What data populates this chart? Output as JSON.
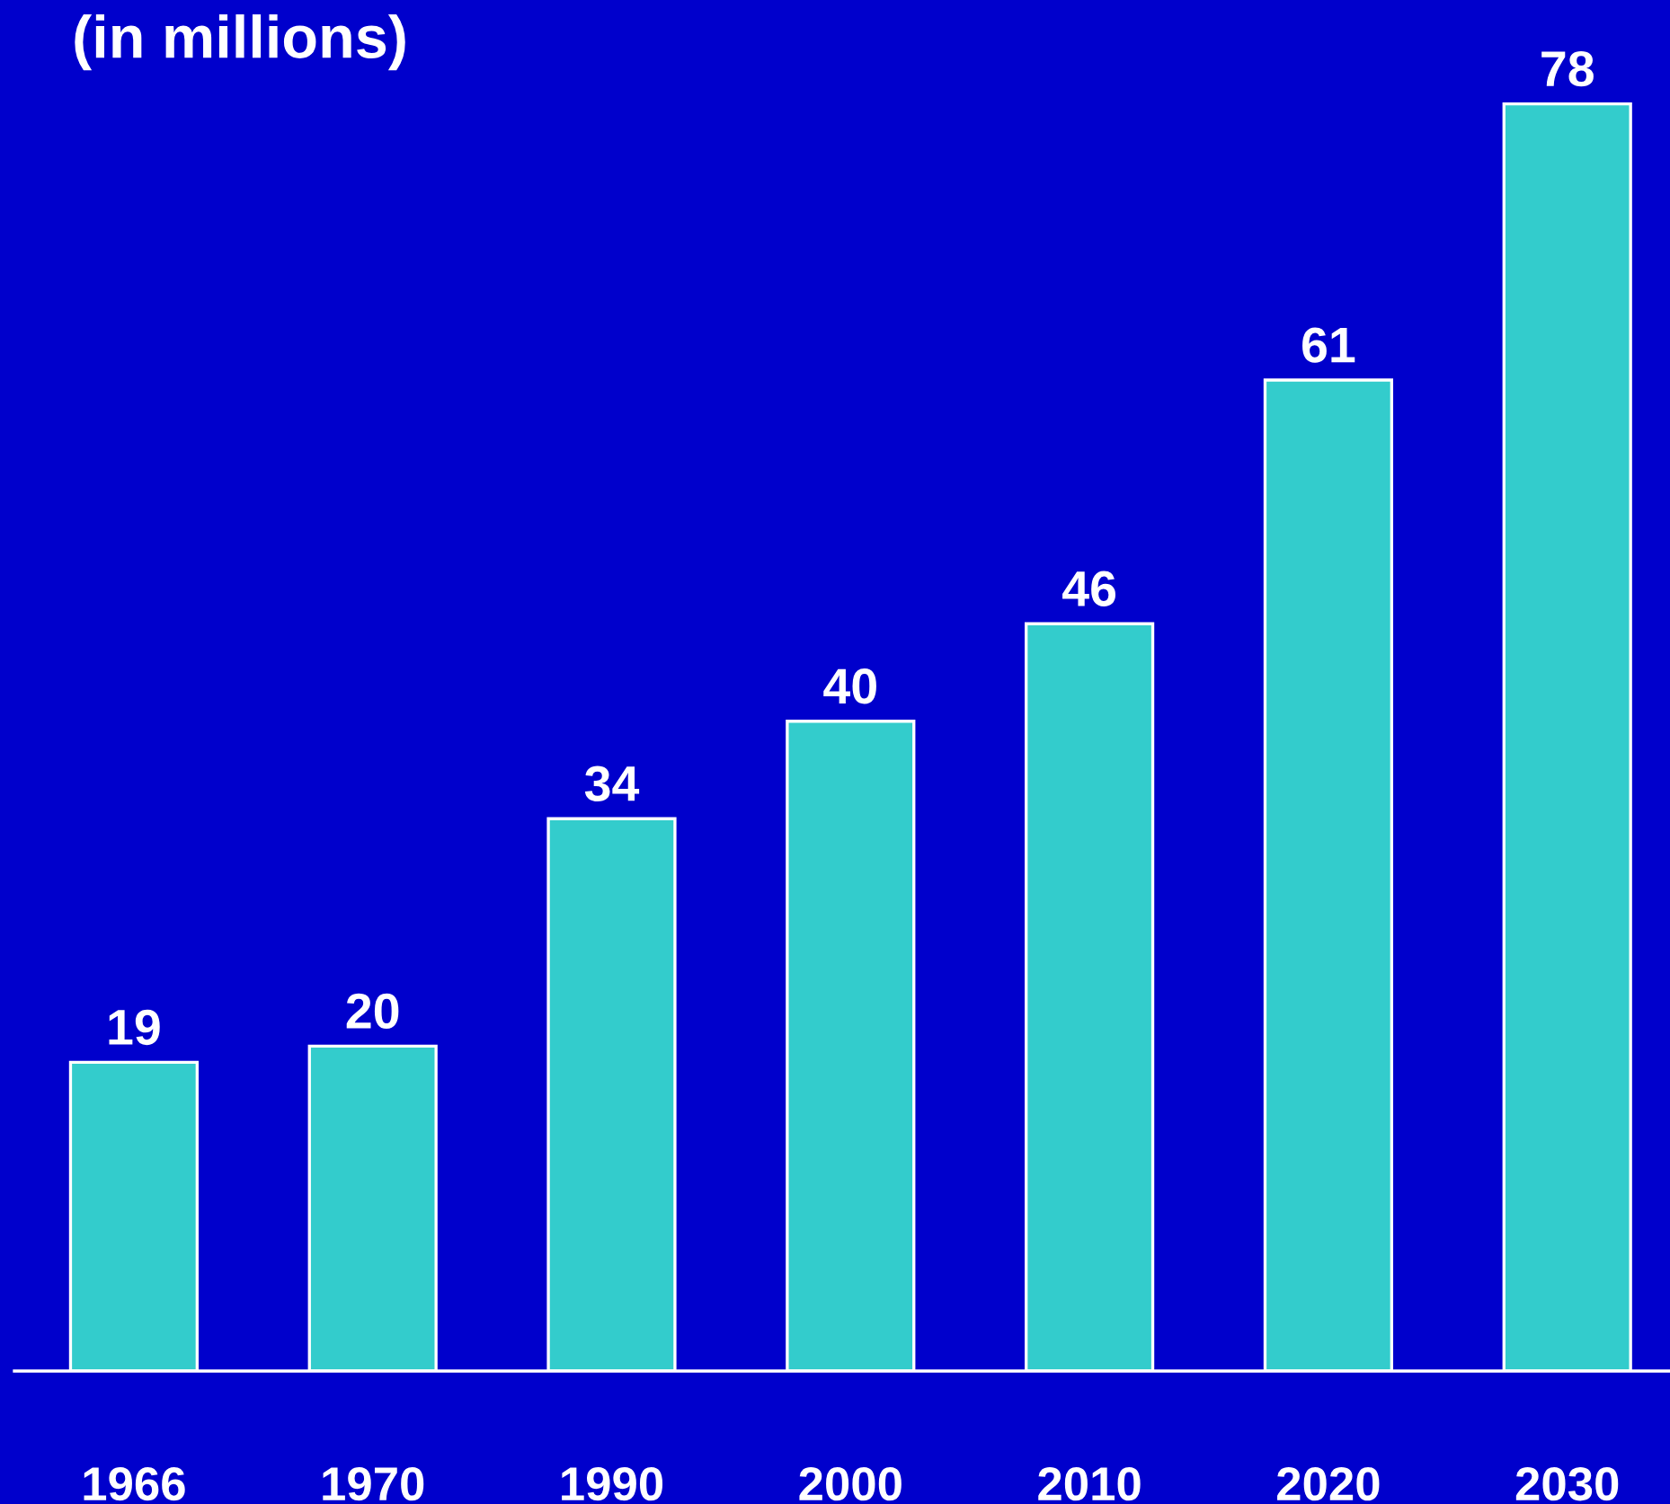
{
  "chart_data": {
    "type": "bar",
    "title": "(in millions)",
    "categories": [
      "1966",
      "1970",
      "1990",
      "2000",
      "2010",
      "2020",
      "2030"
    ],
    "values": [
      19,
      20,
      34,
      40,
      46,
      61,
      78
    ],
    "color": "#33cccc",
    "data_labels": true,
    "grid": false,
    "legend": false
  }
}
